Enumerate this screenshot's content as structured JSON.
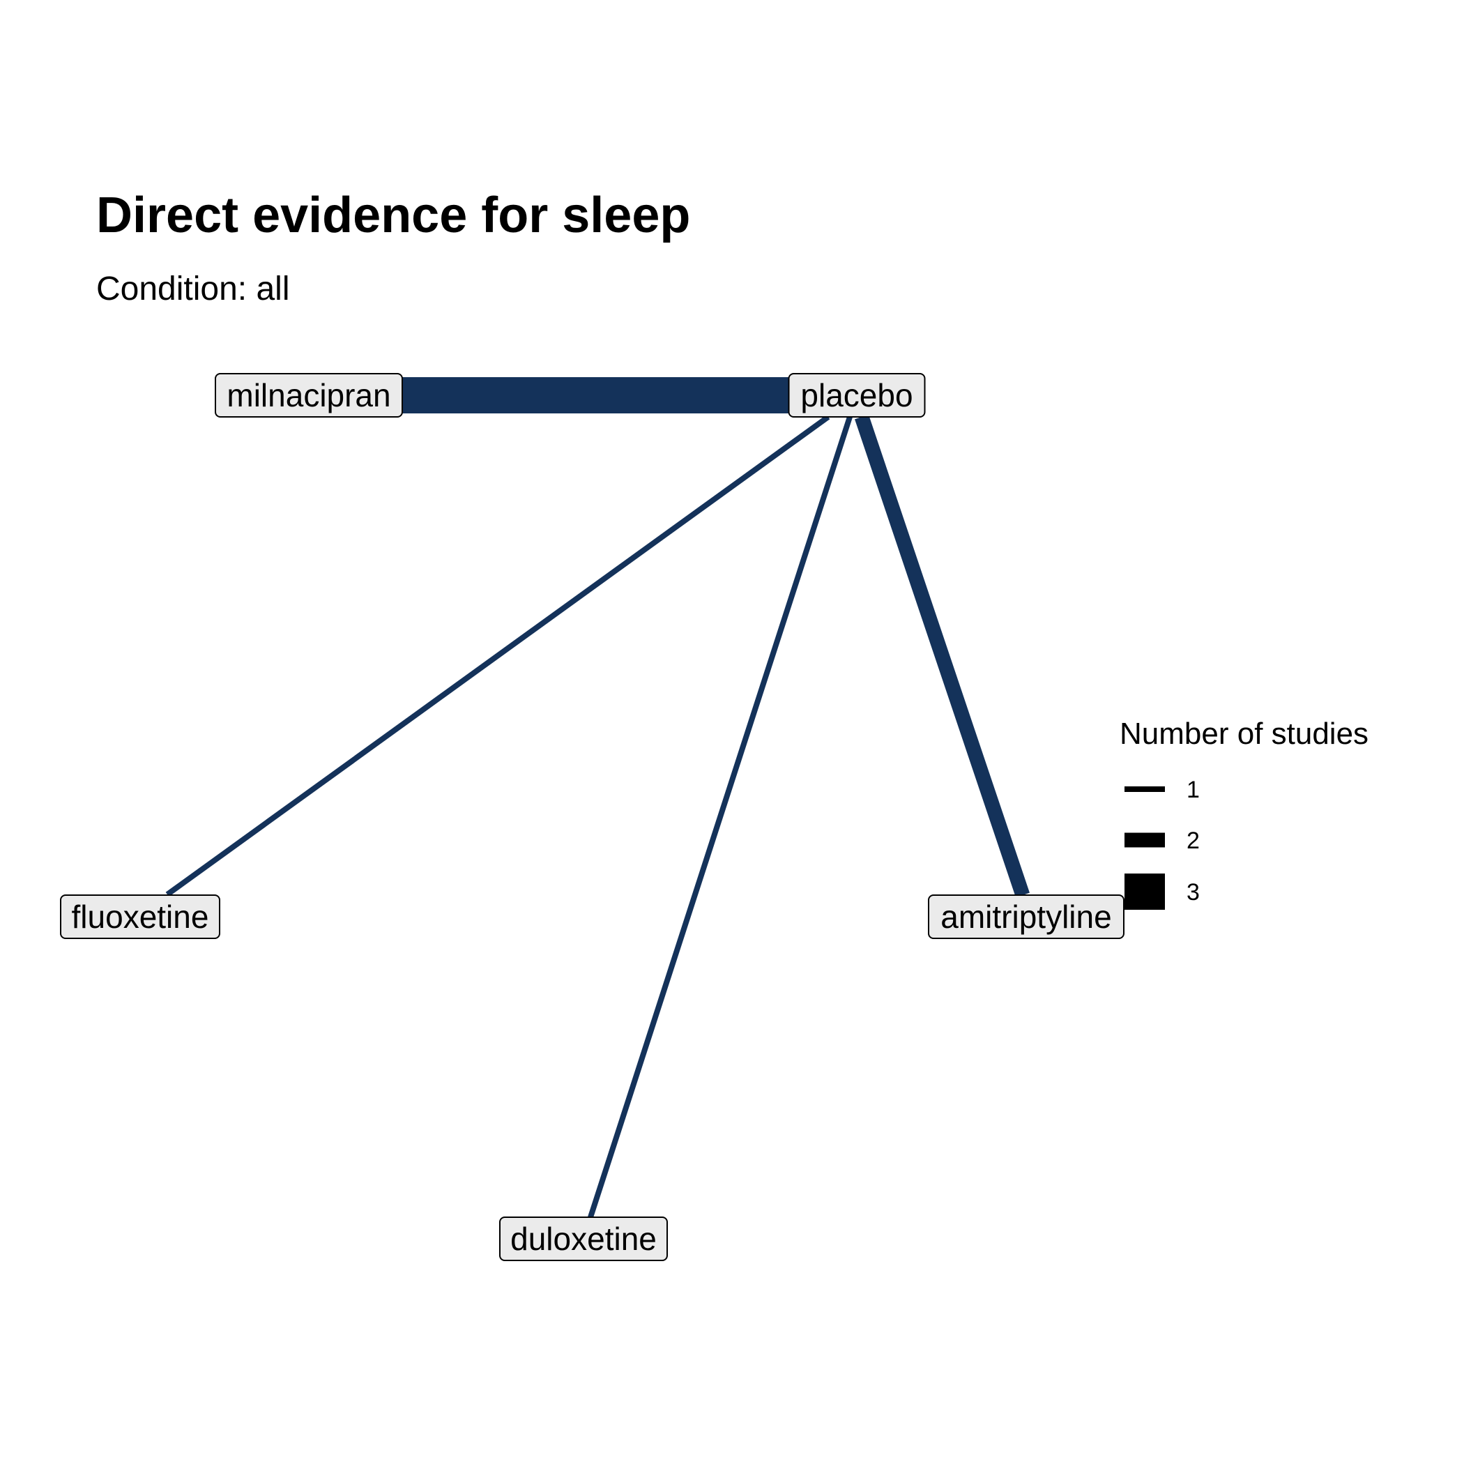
{
  "title": "Direct evidence for sleep",
  "subtitle": "Condition: all",
  "colors": {
    "edge": "#14325a",
    "node_fill": "#ebebeb",
    "legend_key": "#000000"
  },
  "nodes": [
    {
      "id": "milnacipran",
      "label": "milnacipran"
    },
    {
      "id": "placebo",
      "label": "placebo"
    },
    {
      "id": "fluoxetine",
      "label": "fluoxetine"
    },
    {
      "id": "amitriptyline",
      "label": "amitriptyline"
    },
    {
      "id": "duloxetine",
      "label": "duloxetine"
    }
  ],
  "edges": [
    {
      "from": "milnacipran",
      "to": "placebo",
      "studies": 3
    },
    {
      "from": "placebo",
      "to": "fluoxetine",
      "studies": 1
    },
    {
      "from": "placebo",
      "to": "duloxetine",
      "studies": 1
    },
    {
      "from": "placebo",
      "to": "amitriptyline",
      "studies": 2
    }
  ],
  "legend": {
    "title": "Number of studies",
    "items": [
      {
        "label": "1",
        "value": 1
      },
      {
        "label": "2",
        "value": 2
      },
      {
        "label": "3",
        "value": 3
      }
    ]
  }
}
